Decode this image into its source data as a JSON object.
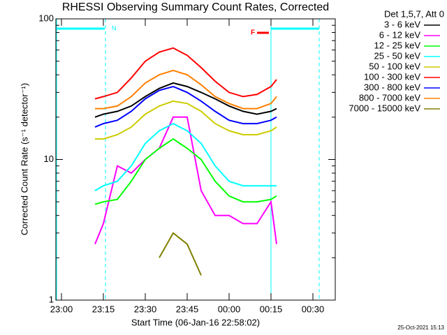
{
  "chart_data": {
    "type": "line",
    "title": "RHESSI Observing Summary Count Rates, Corrected",
    "xlabel": "Start Time (06-Jan-16 22:58:02)",
    "ylabel": "Corrected Count Rate (s⁻¹ detector⁻¹)",
    "legend_title": "Det 1,5,7, Att 0",
    "footer": "25-Oct-2021 15:13",
    "annotations": [
      "N",
      "F"
    ],
    "log_y": true,
    "legend": "outside right",
    "xlim": [
      "22:58",
      "00:38"
    ],
    "xticks": [
      "23:00",
      "23:15",
      "23:30",
      "23:45",
      "00:00",
      "00:15",
      "00:30"
    ],
    "ylim": [
      1,
      100
    ],
    "yticks": [
      1,
      10,
      100
    ],
    "yminor_ticks": [
      2,
      3,
      4,
      5,
      6,
      7,
      8,
      9,
      20,
      30,
      40,
      50,
      60,
      70,
      80,
      90
    ],
    "x": [
      "23:12",
      "23:15",
      "23:20",
      "23:25",
      "23:30",
      "23:35",
      "23:40",
      "23:45",
      "23:50",
      "23:55",
      "00:00",
      "00:05",
      "00:10",
      "00:15",
      "00:17"
    ],
    "series": [
      {
        "name": "3 - 6 keV",
        "color": "#000000",
        "values": [
          20,
          21,
          22,
          24,
          28,
          32,
          35,
          33,
          30,
          27,
          24,
          22,
          21,
          22,
          23
        ]
      },
      {
        "name": "6 - 12 keV",
        "color": "#ff00ff",
        "values": [
          2.5,
          3.5,
          9,
          8,
          10,
          12,
          20,
          20,
          6,
          4,
          4,
          3.5,
          3.5,
          5,
          2.5
        ]
      },
      {
        "name": "12 - 25 keV",
        "color": "#00ff00",
        "values": [
          4.8,
          5,
          5.2,
          7,
          10,
          12,
          14,
          12,
          10,
          7,
          5.5,
          5,
          5,
          5.2,
          5.5
        ]
      },
      {
        "name": "25 - 50 keV",
        "color": "#00ffff",
        "values": [
          6,
          6.5,
          7,
          9,
          13,
          16,
          18,
          16,
          13,
          9,
          7,
          6.5,
          6.5,
          6.5,
          6.5
        ]
      },
      {
        "name": "50 - 100 keV",
        "color": "#cccc00",
        "values": [
          14,
          14,
          15,
          17,
          21,
          24,
          26,
          25,
          22,
          18,
          16,
          15,
          15,
          16,
          17
        ]
      },
      {
        "name": "100 - 300 keV",
        "color": "#ff0000",
        "values": [
          27,
          28,
          30,
          38,
          50,
          58,
          62,
          55,
          45,
          36,
          30,
          28,
          29,
          33,
          37
        ]
      },
      {
        "name": "300 - 800 keV",
        "color": "#0000ff",
        "values": [
          17,
          18,
          19,
          22,
          27,
          31,
          33,
          30,
          26,
          22,
          19,
          18,
          18,
          19,
          20
        ]
      },
      {
        "name": "800 - 7000 keV",
        "color": "#ff8000",
        "values": [
          23,
          23,
          24,
          28,
          35,
          40,
          43,
          40,
          34,
          28,
          25,
          23,
          23,
          25,
          28
        ]
      },
      {
        "name": "7000 - 15000 keV",
        "color": "#808000",
        "values": [
          null,
          null,
          null,
          null,
          null,
          2,
          3,
          2.5,
          1.5,
          null,
          null,
          null,
          null,
          null,
          null
        ]
      }
    ]
  }
}
